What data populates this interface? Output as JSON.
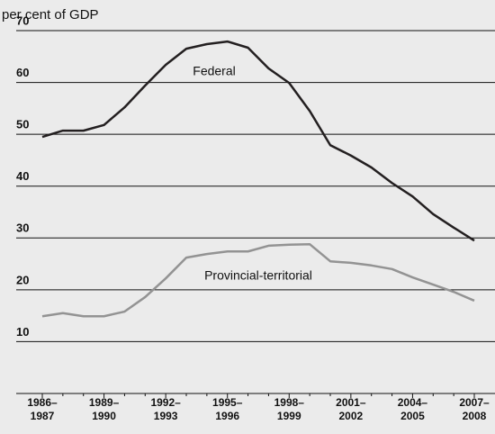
{
  "chart_data": {
    "type": "line",
    "ylabel": "per cent of GDP",
    "categories": [
      "1986–1987",
      null,
      null,
      "1989–1990",
      null,
      null,
      "1992–1993",
      null,
      null,
      "1995–1996",
      null,
      null,
      "1998–1999",
      null,
      null,
      "2001–2002",
      null,
      null,
      "2004–2005",
      null,
      null,
      "2007–2008"
    ],
    "series": [
      {
        "name": "Federal",
        "color": "#231f20",
        "values": [
          49.5,
          50.7,
          50.7,
          51.8,
          55.2,
          59.4,
          63.4,
          66.5,
          67.4,
          67.9,
          66.7,
          62.7,
          59.9,
          54.5,
          47.9,
          45.9,
          43.6,
          40.6,
          38.0,
          34.6,
          32.0,
          29.5
        ]
      },
      {
        "name": "Provincial-territorial",
        "color": "#939393",
        "values": [
          14.9,
          15.5,
          14.9,
          14.9,
          15.8,
          18.6,
          22.2,
          26.2,
          26.9,
          27.4,
          27.4,
          28.5,
          28.7,
          28.8,
          25.5,
          25.2,
          24.7,
          24.0,
          22.4,
          21.0,
          19.6,
          17.9
        ]
      }
    ],
    "ylim": [
      0,
      70
    ],
    "yticks": [
      10,
      20,
      30,
      40,
      50,
      60,
      70
    ],
    "grid": true
  }
}
